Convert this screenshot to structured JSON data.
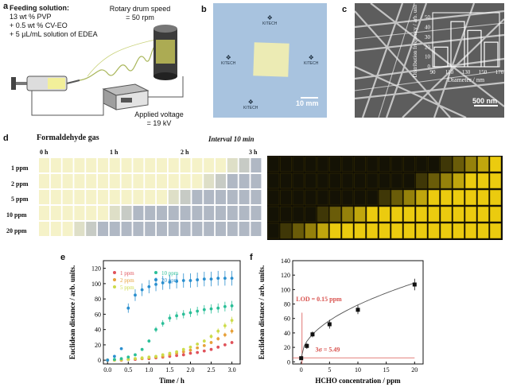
{
  "panels": {
    "a": {
      "letter": "a",
      "feeding_title": "Feeding solution:",
      "feeding_lines": [
        "13 wt % PVP",
        "+ 0.5 wt % CV-EO",
        "+ 5 µL/mL solution of EDEA"
      ],
      "drum_label": "Rotary drum speed",
      "drum_value": "= 50 rpm",
      "voltage_label": "Applied voltage",
      "voltage_value": "= 19 kV"
    },
    "b": {
      "letter": "b",
      "watermark": "KITECH",
      "scale": "10 mm"
    },
    "c": {
      "letter": "c",
      "scale": "500 nm",
      "inset": {
        "ylabel": "Distribution frequency / arb. units",
        "xlabel": "Diameter / nm",
        "x_ticks": [
          "90",
          "110",
          "130",
          "150",
          "170"
        ],
        "y_ticks": [
          "0",
          "10",
          "20",
          "30",
          "40",
          "50"
        ]
      }
    },
    "d": {
      "letter": "d",
      "title": "Formaldehyde gas",
      "interval": "Interval 10 min",
      "time_labels": [
        "0 h",
        "1 h",
        "2 h",
        "3 h"
      ],
      "rows": [
        "1 ppm",
        "2 ppm",
        "5 ppm",
        "10 ppm",
        "20 ppm"
      ]
    },
    "e": {
      "letter": "e"
    },
    "f": {
      "letter": "f",
      "lod": "LOD = 0.15 ppm",
      "sigma": "3σ = 5.49"
    }
  },
  "chart_data": [
    {
      "id": "inset-c",
      "type": "bar",
      "categories": [
        "100",
        "120",
        "140",
        "160"
      ],
      "values": [
        20,
        46,
        37,
        25
      ],
      "xlabel": "Diameter / nm",
      "ylabel": "Distribution frequency / arb. units",
      "ylim": [
        0,
        55
      ]
    },
    {
      "id": "e",
      "type": "scatter",
      "xlabel": "Time / h",
      "ylabel": "Euclidean distance / arb. units.",
      "xlim": [
        -0.1,
        3.2
      ],
      "ylim": [
        -5,
        130
      ],
      "x_ticks": [
        "0.0",
        "0.5",
        "1.0",
        "1.5",
        "2.0",
        "2.5",
        "3.0"
      ],
      "y_ticks": [
        "0",
        "20",
        "40",
        "60",
        "80",
        "100",
        "120"
      ],
      "legend_position": "top-left",
      "x": [
        0,
        0.167,
        0.333,
        0.5,
        0.667,
        0.833,
        1.0,
        1.167,
        1.333,
        1.5,
        1.667,
        1.833,
        2.0,
        2.167,
        2.333,
        2.5,
        2.667,
        2.833,
        3.0
      ],
      "series": [
        {
          "name": "1 ppm",
          "color": "#e0525a",
          "values": [
            0,
            0,
            0,
            1,
            1,
            2,
            2,
            3,
            4,
            5,
            6,
            7,
            9,
            10,
            12,
            14,
            17,
            20,
            23
          ]
        },
        {
          "name": "2 ppm",
          "color": "#e7a13a",
          "values": [
            0,
            0,
            0,
            1,
            2,
            2,
            3,
            4,
            5,
            7,
            9,
            11,
            13,
            16,
            19,
            23,
            28,
            33,
            38
          ]
        },
        {
          "name": "5 ppm",
          "color": "#cddc4a",
          "values": [
            0,
            0,
            1,
            1,
            2,
            3,
            4,
            5,
            7,
            9,
            11,
            14,
            17,
            21,
            25,
            31,
            38,
            45,
            52
          ]
        },
        {
          "name": "10 ppm",
          "color": "#2bbf98",
          "values": [
            0,
            1,
            2,
            4,
            7,
            14,
            25,
            40,
            48,
            55,
            58,
            60,
            62,
            64,
            66,
            67,
            68,
            70,
            71
          ]
        },
        {
          "name": "20 ppm",
          "color": "#2a8fcf",
          "values": [
            0,
            5,
            15,
            68,
            85,
            92,
            96,
            99,
            101,
            102,
            103,
            104,
            104,
            105,
            106,
            106,
            107,
            107,
            107
          ]
        }
      ]
    },
    {
      "id": "f",
      "type": "scatter",
      "xlabel": "HCHO concentration / ppm",
      "ylabel": "Euclidean distance / arb. units.",
      "xlim": [
        -1.5,
        21.5
      ],
      "ylim": [
        -3,
        140
      ],
      "x_ticks": [
        "0",
        "5",
        "10",
        "15",
        "20"
      ],
      "y_ticks": [
        "0",
        "20",
        "40",
        "60",
        "80",
        "100",
        "120",
        "140"
      ],
      "x": [
        0,
        1,
        2,
        5,
        10,
        20
      ],
      "values": [
        5,
        22,
        38,
        52,
        72,
        107
      ],
      "errors": [
        2,
        4,
        4,
        6,
        6,
        8
      ],
      "lod_x": 0.15,
      "sigma_y": 5.49
    }
  ]
}
